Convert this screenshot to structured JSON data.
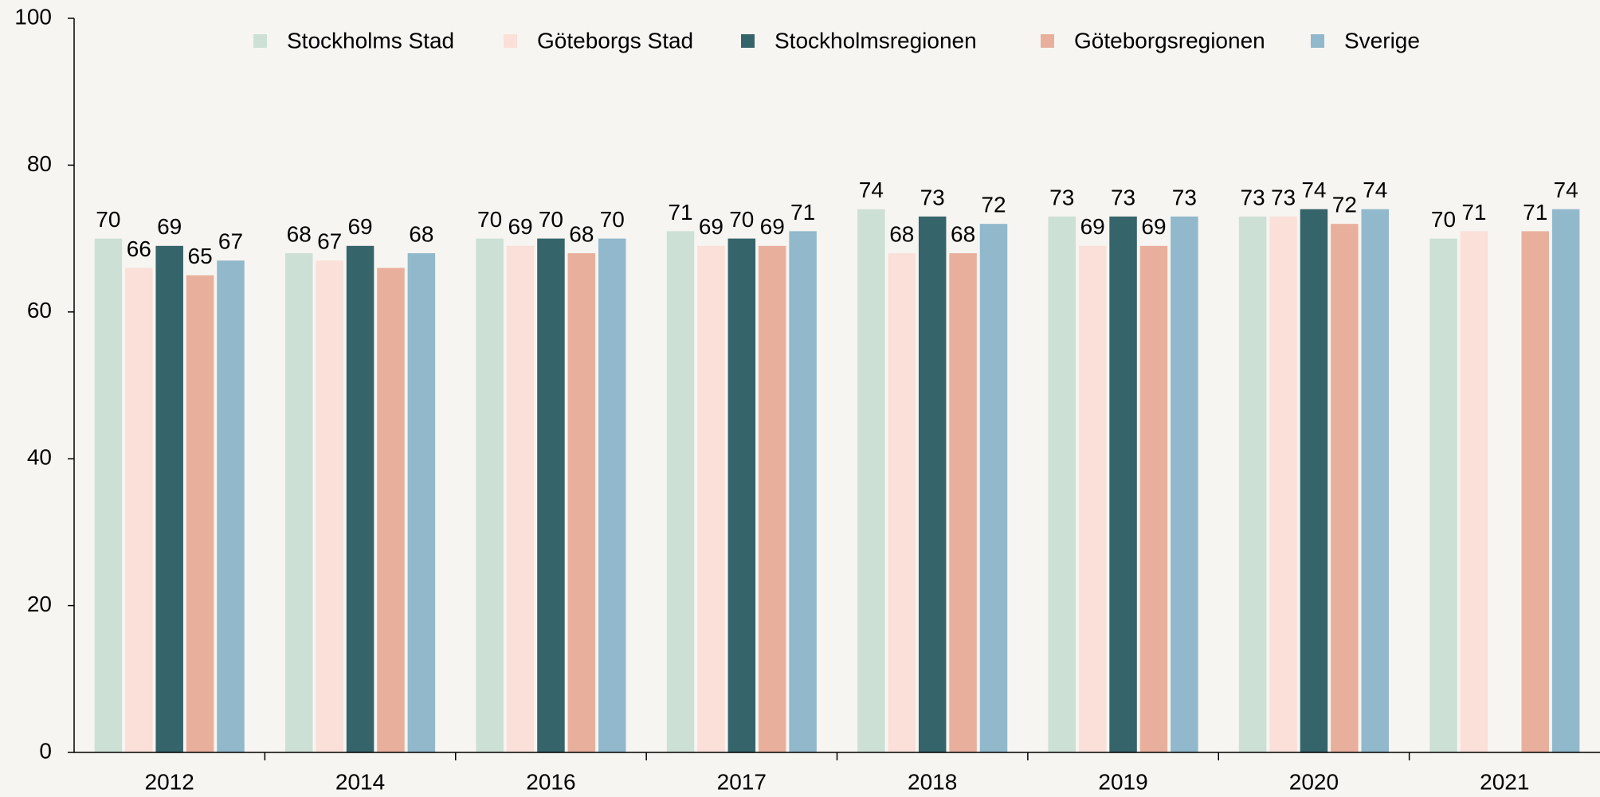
{
  "chart_data": {
    "type": "bar",
    "categories": [
      "2012",
      "2014",
      "2016",
      "2017",
      "2018",
      "2019",
      "2020",
      "2021"
    ],
    "series": [
      {
        "name": "Stockholms Stad",
        "color": "#cce0d6",
        "values": [
          70,
          68,
          70,
          71,
          74,
          73,
          73,
          70
        ]
      },
      {
        "name": "Göteborgs Stad",
        "color": "#fae0d8",
        "values": [
          66,
          67,
          69,
          69,
          68,
          69,
          73,
          71
        ]
      },
      {
        "name": "Stockholmsregionen",
        "color": "#36646b",
        "values": [
          69,
          69,
          70,
          70,
          73,
          73,
          74,
          null
        ]
      },
      {
        "name": "Göteborgsregionen",
        "color": "#e8b09c",
        "values": [
          65,
          66,
          68,
          69,
          68,
          69,
          72,
          71
        ],
        "value_labels": [
          "65",
          null,
          "68",
          "69",
          "68",
          "69",
          "72",
          "71"
        ]
      },
      {
        "name": "Sverige",
        "color": "#91b8cb",
        "values": [
          67,
          68,
          70,
          71,
          72,
          73,
          74,
          74
        ]
      }
    ],
    "ylim": [
      0,
      100
    ],
    "yticks": [
      0,
      20,
      40,
      60,
      80,
      100
    ],
    "legend": "top"
  }
}
